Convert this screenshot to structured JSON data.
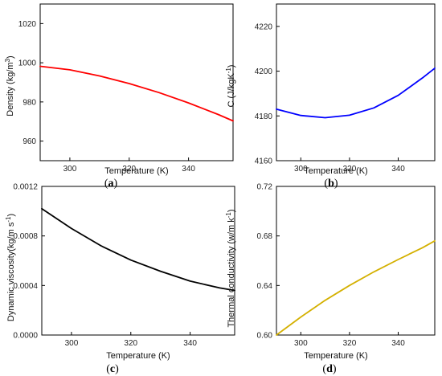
{
  "figure": {
    "panels": [
      {
        "id": "a",
        "panel_label": "a",
        "xlabel": "Temperature (K)",
        "ylabel_main": "Density (kg/m",
        "ylabel_sup": "3",
        "ylabel_end": ")",
        "series_color": "#ff0000",
        "y_tick_labels": [
          "960",
          "980",
          "1000",
          "1020"
        ],
        "x_tick_labels": [
          "300",
          "320",
          "340"
        ]
      },
      {
        "id": "b",
        "panel_label": "b",
        "xlabel": "Temperature (K)",
        "ylabel_main": "C (J/kgK",
        "ylabel_sup": "-1",
        "ylabel_end": ")",
        "series_color": "#0000ff",
        "y_tick_labels": [
          "4160",
          "4180",
          "4200",
          "4220"
        ],
        "x_tick_labels": [
          "300",
          "320",
          "340"
        ]
      },
      {
        "id": "c",
        "panel_label": "c",
        "xlabel": "Temperature (K)",
        "ylabel_main": "Dynamic viscosity(kg/m s",
        "ylabel_sup": "-1",
        "ylabel_end": ")",
        "series_color": "#000000",
        "y_tick_labels": [
          "0.0000",
          "0.0004",
          "0.0008",
          "0.0012"
        ],
        "x_tick_labels": [
          "300",
          "320",
          "340"
        ]
      },
      {
        "id": "d",
        "panel_label": "d",
        "xlabel": "Temperature (K)",
        "ylabel_main": "Thermal conductivity (w/m k",
        "ylabel_sup": "-1",
        "ylabel_end": ")",
        "series_color": "#d4b000",
        "y_tick_labels": [
          "0.60",
          "0.64",
          "0.68",
          "0.72"
        ],
        "x_tick_labels": [
          "300",
          "320",
          "340"
        ]
      }
    ]
  },
  "chart_data": [
    {
      "type": "line",
      "xlabel": "Temperature (K)",
      "ylabel": "Density (kg/m3)",
      "xlim": [
        290,
        355
      ],
      "ylim": [
        950,
        1030
      ],
      "x_ticks": [
        300,
        320,
        340
      ],
      "y_ticks": [
        960,
        980,
        1000,
        1020
      ],
      "grid": false,
      "series": [
        {
          "color": "#ff0000",
          "x": [
            290,
            300,
            310,
            320,
            330,
            340,
            350,
            355
          ],
          "y": [
            998.2,
            996.4,
            993.3,
            989.4,
            984.8,
            979.5,
            973.6,
            970.3
          ]
        }
      ]
    },
    {
      "type": "line",
      "xlabel": "Temperature (K)",
      "ylabel": "C (J/kgK-1)",
      "xlim": [
        290,
        355
      ],
      "ylim": [
        4160,
        4230
      ],
      "x_ticks": [
        300,
        320,
        340
      ],
      "y_ticks": [
        4160,
        4180,
        4200,
        4220
      ],
      "grid": false,
      "series": [
        {
          "color": "#0000ff",
          "x": [
            290,
            300,
            310,
            320,
            330,
            340,
            350,
            355
          ],
          "y": [
            4183,
            4180.2,
            4179.2,
            4180.3,
            4183.6,
            4189.2,
            4197,
            4201.3
          ]
        }
      ]
    },
    {
      "type": "line",
      "xlabel": "Temperature (K)",
      "ylabel": "Dynamic viscosity(kg/m s-1)",
      "xlim": [
        290,
        355
      ],
      "ylim": [
        0.0,
        0.0012
      ],
      "x_ticks": [
        300,
        320,
        340
      ],
      "y_ticks": [
        0.0,
        0.0004,
        0.0008,
        0.0012
      ],
      "grid": false,
      "series": [
        {
          "color": "#000000",
          "x": [
            290,
            300,
            310,
            320,
            330,
            340,
            350,
            355
          ],
          "y": [
            0.00102,
            0.00086,
            0.00072,
            0.000605,
            0.000515,
            0.000435,
            0.00038,
            0.00036
          ]
        }
      ]
    },
    {
      "type": "line",
      "xlabel": "Temperature (K)",
      "ylabel": "Thermal conductivity (w/m k-1)",
      "xlim": [
        290,
        355
      ],
      "ylim": [
        0.6,
        0.72
      ],
      "x_ticks": [
        300,
        320,
        340
      ],
      "y_ticks": [
        0.6,
        0.64,
        0.68,
        0.72
      ],
      "grid": false,
      "series": [
        {
          "color": "#d4b000",
          "x": [
            290,
            300,
            310,
            320,
            330,
            340,
            350,
            355
          ],
          "y": [
            0.6,
            0.6145,
            0.628,
            0.64,
            0.651,
            0.661,
            0.6705,
            0.676
          ]
        }
      ]
    }
  ]
}
